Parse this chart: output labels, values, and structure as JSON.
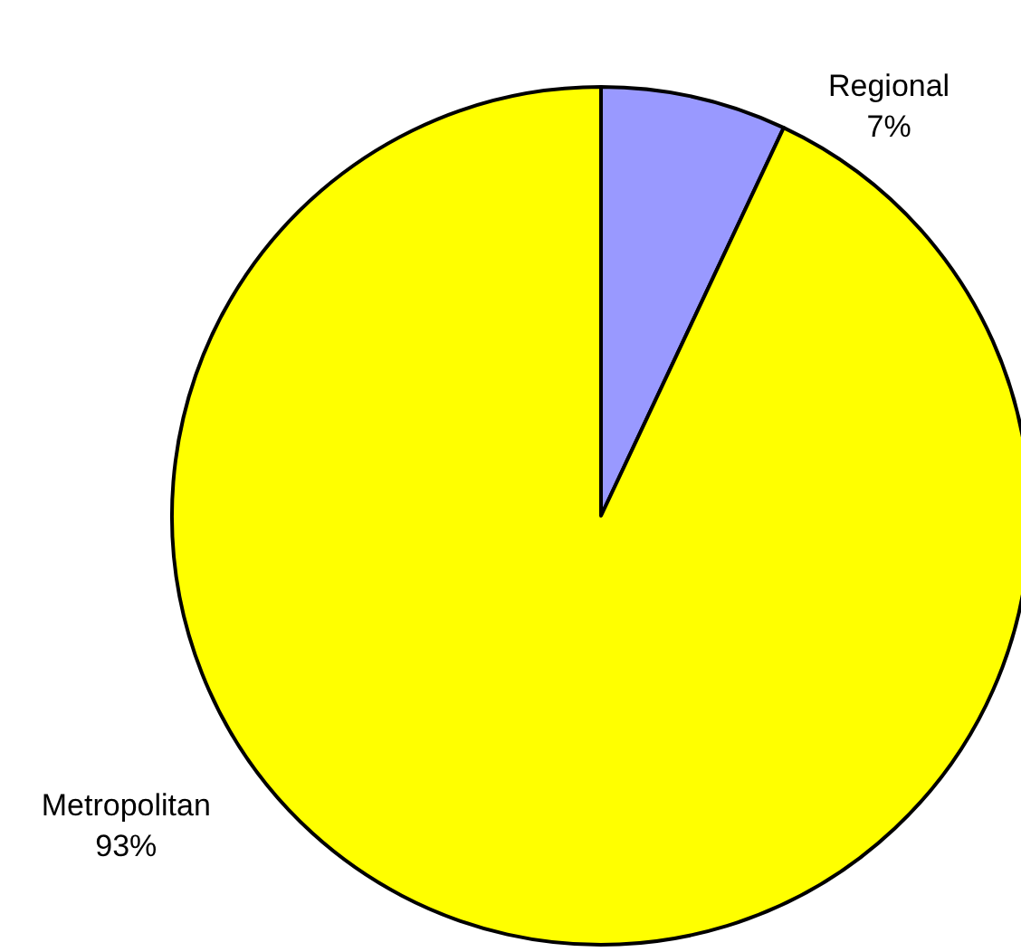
{
  "chart_data": {
    "type": "pie",
    "categories": [
      "Regional",
      "Metropolitan"
    ],
    "values": [
      7,
      93
    ],
    "colors": [
      "#9999ff",
      "#ffff00"
    ],
    "value_labels": [
      "7%",
      "93%"
    ]
  }
}
